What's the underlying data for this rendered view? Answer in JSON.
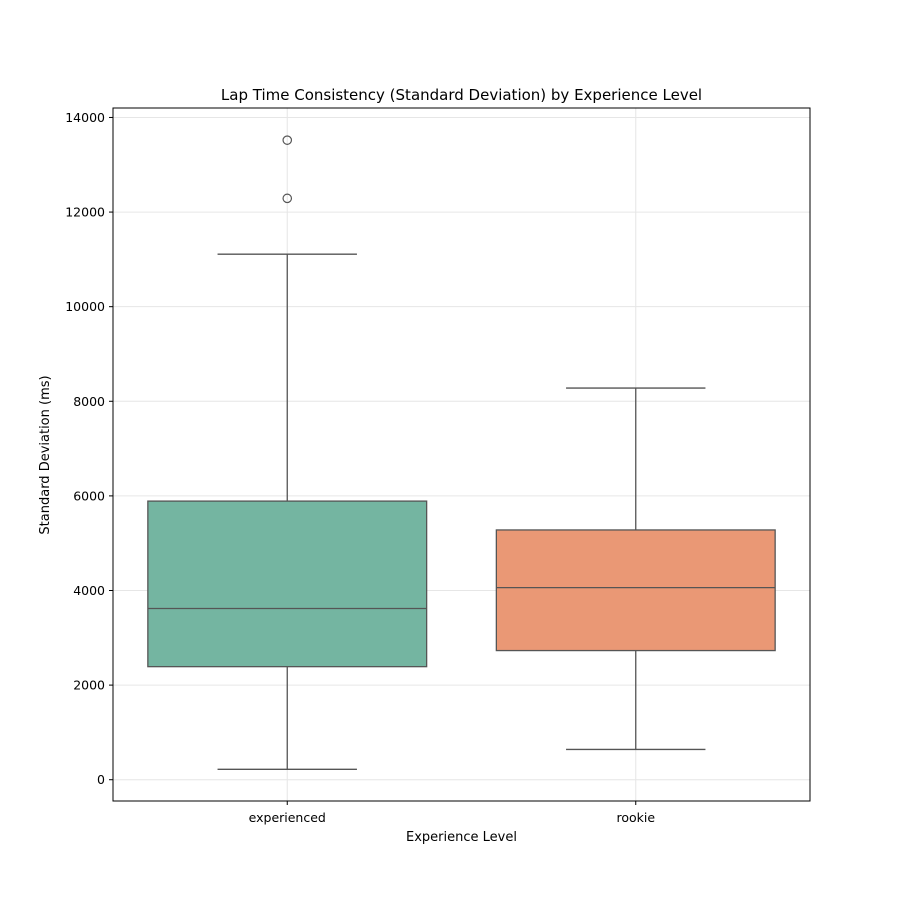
{
  "chart_data": {
    "type": "box",
    "title": "Lap Time Consistency (Standard Deviation) by Experience Level",
    "xlabel": "Experience Level",
    "ylabel": "Standard Deviation (ms)",
    "ylim": [
      -450,
      14200
    ],
    "yticks": [
      0,
      2000,
      4000,
      6000,
      8000,
      10000,
      12000,
      14000
    ],
    "grid": true,
    "categories": [
      "experienced",
      "rookie"
    ],
    "boxes": [
      {
        "name": "experienced",
        "whisker_low": 220,
        "q1": 2390,
        "median": 3620,
        "q3": 5890,
        "whisker_high": 11110,
        "outliers": [
          12290,
          13520
        ],
        "color": "#74b5a1"
      },
      {
        "name": "rookie",
        "whisker_low": 640,
        "q1": 2730,
        "median": 4060,
        "q3": 5280,
        "whisker_high": 8280,
        "outliers": [],
        "color": "#ea9875"
      }
    ]
  }
}
